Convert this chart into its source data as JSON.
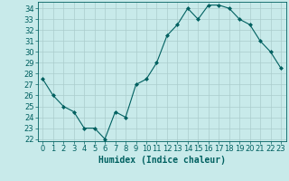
{
  "x": [
    0,
    1,
    2,
    3,
    4,
    5,
    6,
    7,
    8,
    9,
    10,
    11,
    12,
    13,
    14,
    15,
    16,
    17,
    18,
    19,
    20,
    21,
    22,
    23
  ],
  "y": [
    27.5,
    26.0,
    25.0,
    24.5,
    23.0,
    23.0,
    22.0,
    24.5,
    24.0,
    27.0,
    27.5,
    29.0,
    31.5,
    32.5,
    34.0,
    33.0,
    34.3,
    34.3,
    34.0,
    33.0,
    32.5,
    31.0,
    30.0,
    28.5
  ],
  "line_color": "#006060",
  "marker": "D",
  "marker_size": 2,
  "bg_color": "#c8eaea",
  "grid_color": "#aacccc",
  "xlabel": "Humidex (Indice chaleur)",
  "ylim": [
    21.8,
    34.6
  ],
  "xlim": [
    -0.5,
    23.5
  ],
  "yticks": [
    22,
    23,
    24,
    25,
    26,
    27,
    28,
    29,
    30,
    31,
    32,
    33,
    34
  ],
  "xticks": [
    0,
    1,
    2,
    3,
    4,
    5,
    6,
    7,
    8,
    9,
    10,
    11,
    12,
    13,
    14,
    15,
    16,
    17,
    18,
    19,
    20,
    21,
    22,
    23
  ],
  "xlabel_fontsize": 7,
  "tick_fontsize": 6,
  "tick_color": "#006060",
  "label_color": "#006060"
}
